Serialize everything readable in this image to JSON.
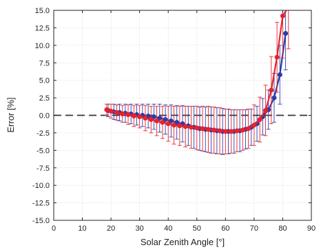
{
  "chart_data": {
    "type": "line",
    "xlabel": "Solar Zenith Angle [°]",
    "ylabel": "Error [%]",
    "xlim": [
      0,
      90
    ],
    "ylim": [
      -15,
      15
    ],
    "xticks": [
      0,
      10,
      20,
      30,
      40,
      50,
      60,
      70,
      80,
      90
    ],
    "yticks": [
      -15.0,
      -12.5,
      -10.0,
      -7.5,
      -5.0,
      -2.5,
      0.0,
      2.5,
      5.0,
      7.5,
      10.0,
      12.5,
      15.0
    ],
    "grid": true,
    "reference_line": {
      "y": 0,
      "style": "dashed",
      "color": "#333333"
    },
    "series": [
      {
        "color": "#2b3da8",
        "points": [
          {
            "x": 19,
            "y": 0.7,
            "err": 0.9
          },
          {
            "x": 21,
            "y": 0.5,
            "err": 1.1
          },
          {
            "x": 23,
            "y": 0.4,
            "err": 1.2
          },
          {
            "x": 25,
            "y": 0.3,
            "err": 1.3
          },
          {
            "x": 27,
            "y": 0.2,
            "err": 1.4
          },
          {
            "x": 29,
            "y": 0.1,
            "err": 1.5
          },
          {
            "x": 31,
            "y": 0.0,
            "err": 1.6
          },
          {
            "x": 33,
            "y": -0.1,
            "err": 1.7
          },
          {
            "x": 35,
            "y": -0.2,
            "err": 1.8
          },
          {
            "x": 37,
            "y": -0.4,
            "err": 2.0
          },
          {
            "x": 39,
            "y": -0.6,
            "err": 2.1
          },
          {
            "x": 41,
            "y": -0.8,
            "err": 2.3
          },
          {
            "x": 43,
            "y": -1.0,
            "err": 2.4
          },
          {
            "x": 45,
            "y": -1.2,
            "err": 2.6
          },
          {
            "x": 47,
            "y": -1.5,
            "err": 2.8
          },
          {
            "x": 49,
            "y": -1.7,
            "err": 3.0
          },
          {
            "x": 51,
            "y": -1.9,
            "err": 3.1
          },
          {
            "x": 53,
            "y": -2.0,
            "err": 3.2
          },
          {
            "x": 55,
            "y": -2.1,
            "err": 3.3
          },
          {
            "x": 57,
            "y": -2.2,
            "err": 3.3
          },
          {
            "x": 59,
            "y": -2.3,
            "err": 3.3
          },
          {
            "x": 61,
            "y": -2.3,
            "err": 3.2
          },
          {
            "x": 63,
            "y": -2.3,
            "err": 3.1
          },
          {
            "x": 65,
            "y": -2.2,
            "err": 3.0
          },
          {
            "x": 67,
            "y": -2.0,
            "err": 2.8
          },
          {
            "x": 69,
            "y": -1.7,
            "err": 2.6
          },
          {
            "x": 71,
            "y": -1.2,
            "err": 2.5
          },
          {
            "x": 73,
            "y": -0.2,
            "err": 2.6
          },
          {
            "x": 75,
            "y": 0.8,
            "err": 2.8
          },
          {
            "x": 77,
            "y": 2.5,
            "err": 3.5
          },
          {
            "x": 79,
            "y": 5.8,
            "err": 4.2
          },
          {
            "x": 81,
            "y": 11.7,
            "err": 5.2
          }
        ]
      },
      {
        "color": "#e8212a",
        "points": [
          {
            "x": 18.5,
            "y": 0.8,
            "err": 0.8
          },
          {
            "x": 20,
            "y": 0.6,
            "err": 1.0
          },
          {
            "x": 22,
            "y": 0.4,
            "err": 1.1
          },
          {
            "x": 24,
            "y": 0.2,
            "err": 1.2
          },
          {
            "x": 26,
            "y": 0.1,
            "err": 1.4
          },
          {
            "x": 28,
            "y": -0.1,
            "err": 1.5
          },
          {
            "x": 30,
            "y": -0.2,
            "err": 1.6
          },
          {
            "x": 32,
            "y": -0.4,
            "err": 1.8
          },
          {
            "x": 34,
            "y": -0.6,
            "err": 1.9
          },
          {
            "x": 36,
            "y": -0.8,
            "err": 2.1
          },
          {
            "x": 38,
            "y": -1.0,
            "err": 2.3
          },
          {
            "x": 40,
            "y": -1.2,
            "err": 2.5
          },
          {
            "x": 42,
            "y": -1.4,
            "err": 2.7
          },
          {
            "x": 44,
            "y": -1.5,
            "err": 2.8
          },
          {
            "x": 46,
            "y": -1.6,
            "err": 2.9
          },
          {
            "x": 48,
            "y": -1.7,
            "err": 3.0
          },
          {
            "x": 50,
            "y": -1.8,
            "err": 3.1
          },
          {
            "x": 52,
            "y": -1.9,
            "err": 3.2
          },
          {
            "x": 54,
            "y": -2.0,
            "err": 3.3
          },
          {
            "x": 56,
            "y": -2.1,
            "err": 3.3
          },
          {
            "x": 58,
            "y": -2.2,
            "err": 3.3
          },
          {
            "x": 60,
            "y": -2.3,
            "err": 3.2
          },
          {
            "x": 62,
            "y": -2.3,
            "err": 3.1
          },
          {
            "x": 64,
            "y": -2.2,
            "err": 3.0
          },
          {
            "x": 66,
            "y": -2.1,
            "err": 2.9
          },
          {
            "x": 68,
            "y": -1.9,
            "err": 2.8
          },
          {
            "x": 70,
            "y": -1.4,
            "err": 2.9
          },
          {
            "x": 72,
            "y": -0.6,
            "err": 3.2
          },
          {
            "x": 74,
            "y": 0.7,
            "err": 3.6
          },
          {
            "x": 76,
            "y": 3.6,
            "err": 4.8
          },
          {
            "x": 78,
            "y": 8.3,
            "err": 5.0
          },
          {
            "x": 80,
            "y": 14.2,
            "err": 6.0
          },
          {
            "x": 82,
            "y": 15.5,
            "err": 6.0
          }
        ]
      }
    ]
  }
}
